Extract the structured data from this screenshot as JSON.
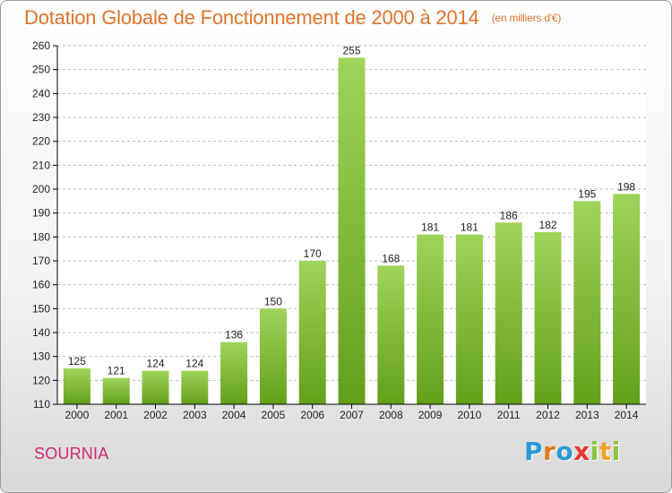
{
  "header": {
    "title": "Dotation Globale de Fonctionnement de 2000 à 2014",
    "unit": "(en milliers d'€)"
  },
  "footer": {
    "commune": "SOURNIA",
    "brand": "Proxiti"
  },
  "colors": {
    "title": "#e0742b",
    "commune": "#d2286c",
    "bar_top": "#9fd45a",
    "bar_bottom": "#63a01a",
    "axis": "#000000",
    "grid": "#bbbbbb"
  },
  "chart_data": {
    "type": "bar",
    "title": "Dotation Globale de Fonctionnement de 2000 à 2014",
    "subtitle": "(en milliers d'€)",
    "xlabel": "",
    "ylabel": "",
    "categories": [
      "2000",
      "2001",
      "2002",
      "2003",
      "2004",
      "2005",
      "2006",
      "2007",
      "2008",
      "2009",
      "2010",
      "2011",
      "2012",
      "2013",
      "2014"
    ],
    "values": [
      125,
      121,
      124,
      124,
      136,
      150,
      170,
      255,
      168,
      181,
      181,
      186,
      182,
      195,
      198
    ],
    "ylim": [
      110,
      260
    ],
    "yticks": [
      110,
      120,
      130,
      140,
      150,
      160,
      170,
      180,
      190,
      200,
      210,
      220,
      230,
      240,
      250,
      260
    ],
    "grid": true,
    "grid_style": "dashed horizontal",
    "data_labels": true,
    "legend": "none"
  }
}
